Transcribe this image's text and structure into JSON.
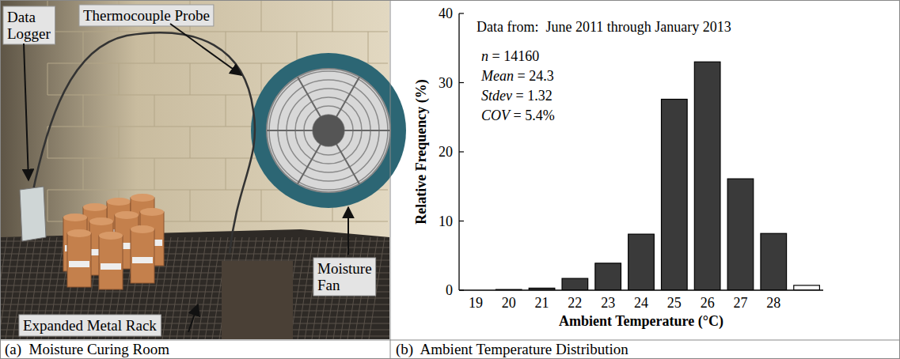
{
  "photo_panel": {
    "caption": "(a)  Moisture Curing Room",
    "labels": {
      "data_logger": "Data Logger",
      "thermocouple_probe": "Thermocouple Probe",
      "moisture_fan": "Moisture Fan",
      "expanded_metal_rack": "Expanded Metal Rack"
    }
  },
  "chart_data": {
    "type": "bar",
    "title": "(b)  Ambient Temperature Distribution",
    "x_label": "Ambient Temperature (°C)",
    "y_label": "Relative Frequency (%)",
    "annotations": [
      "Data from:  June 2011 through January 2013",
      "n = 14160",
      "Mean = 24.3",
      "Stdev = 1.32",
      "COV = 5.4%"
    ],
    "categories": [
      "19",
      "20",
      "21",
      "22",
      "23",
      "24",
      "25",
      "26",
      "27",
      "28",
      null
    ],
    "values": [
      0,
      0.1,
      0.3,
      1.7,
      3.9,
      8.1,
      27.6,
      33.0,
      16.1,
      8.2,
      0.7
    ],
    "colors": [
      "#3a3a3a",
      "#3a3a3a",
      "#3a3a3a",
      "#3a3a3a",
      "#3a3a3a",
      "#3a3a3a",
      "#3a3a3a",
      "#3a3a3a",
      "#3a3a3a",
      "#3a3a3a",
      "#ffffff"
    ],
    "ylim": [
      0,
      40
    ],
    "yticks": [
      0,
      10,
      20,
      30,
      40
    ],
    "grid": false
  }
}
